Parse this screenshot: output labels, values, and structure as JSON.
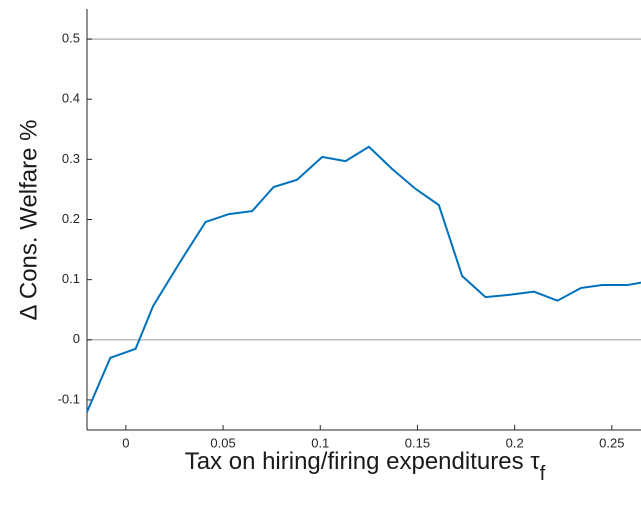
{
  "chart_data": {
    "type": "line",
    "xlabel": "Tax on hiring/firing expenditures τ",
    "xlabel_subscript": "f",
    "ylabel": "Δ Cons. Welfare %",
    "x": [
      -0.02,
      -0.008,
      0.005,
      0.014,
      0.028,
      0.041,
      0.053,
      0.065,
      0.076,
      0.088,
      0.101,
      0.113,
      0.125,
      0.137,
      0.149,
      0.161,
      0.173,
      0.185,
      0.198,
      0.21,
      0.222,
      0.234,
      0.245,
      0.258,
      0.265
    ],
    "series": [
      {
        "color": "#0072bd",
        "values": [
          -0.12,
          -0.03,
          -0.015,
          0.056,
          0.13,
          0.196,
          0.209,
          0.214,
          0.254,
          0.266,
          0.304,
          0.297,
          0.321,
          0.284,
          0.251,
          0.224,
          0.106,
          0.071,
          0.075,
          0.08,
          0.065,
          0.086,
          0.091,
          0.091,
          0.095
        ]
      }
    ],
    "xlim": [
      -0.02,
      0.265
    ],
    "ylim": [
      -0.15,
      0.55
    ],
    "xticks": [
      0,
      0.05,
      0.1,
      0.15,
      0.2,
      0.25
    ],
    "yticks": [
      -0.1,
      0,
      0.1,
      0.2,
      0.3,
      0.4,
      0.5
    ],
    "hlines": [
      0,
      0.5
    ],
    "hline_color": "#bdbdbd"
  }
}
